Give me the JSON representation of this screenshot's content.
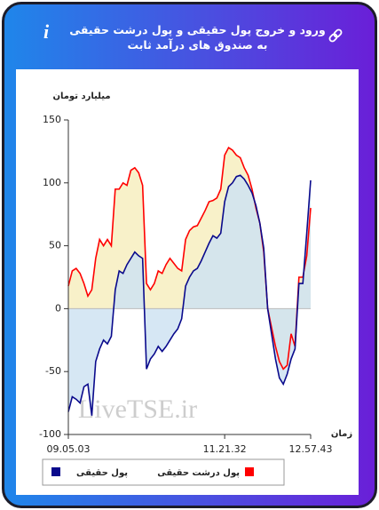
{
  "chart_data": {
    "type": "line",
    "title": "ورود و خروج پول حقیقی و پول درشت حقیقی به صندوق های درآمد ثابت",
    "y_label": "میلیارد تومان",
    "x_label": "زمان",
    "watermark": "LiveTSE.ir",
    "categories": [
      "09.05.03",
      null,
      null,
      null,
      null,
      null,
      null,
      null,
      null,
      null,
      null,
      null,
      null,
      null,
      null,
      null,
      null,
      null,
      null,
      null,
      null,
      null,
      null,
      null,
      null,
      null,
      null,
      null,
      null,
      null,
      null,
      null,
      null,
      null,
      null,
      null,
      null,
      null,
      null,
      null,
      "11.21.32",
      null,
      null,
      null,
      null,
      null,
      null,
      null,
      null,
      null,
      null,
      null,
      null,
      null,
      null,
      null,
      null,
      null,
      null,
      null,
      null,
      null,
      "12.57.43"
    ],
    "series": [
      {
        "name": "پول حقیقی",
        "color": "#0a0a8c",
        "fill": "#cfe3f2",
        "values": [
          -82,
          -70,
          -72,
          -75,
          -62,
          -60,
          -85,
          -42,
          -32,
          -25,
          -28,
          -22,
          15,
          30,
          28,
          35,
          40,
          45,
          42,
          40,
          -48,
          -40,
          -36,
          -30,
          -34,
          -30,
          -25,
          -20,
          -16,
          -8,
          18,
          25,
          30,
          32,
          38,
          45,
          52,
          58,
          56,
          60,
          85,
          97,
          100,
          105,
          106,
          103,
          98,
          92,
          82,
          68,
          48,
          0,
          -20,
          -40,
          -55,
          -60,
          -52,
          -40,
          -32,
          20,
          20,
          60,
          102
        ]
      },
      {
        "name": "پول درشت حقیقی",
        "color": "#ff0000",
        "fill": "#f7efbf",
        "values": [
          18,
          30,
          32,
          28,
          20,
          10,
          15,
          40,
          55,
          50,
          55,
          50,
          95,
          95,
          100,
          98,
          110,
          112,
          108,
          98,
          20,
          15,
          20,
          30,
          28,
          35,
          40,
          36,
          32,
          30,
          55,
          62,
          65,
          66,
          72,
          78,
          85,
          86,
          88,
          95,
          122,
          128,
          126,
          122,
          120,
          112,
          106,
          95,
          80,
          68,
          45,
          0,
          -15,
          -30,
          -42,
          -48,
          -45,
          -20,
          -30,
          25,
          25,
          42,
          80
        ]
      }
    ],
    "ylim": [
      -100,
      150
    ],
    "yticks": [
      -100,
      -50,
      0,
      50,
      100,
      150
    ],
    "grid": false
  }
}
